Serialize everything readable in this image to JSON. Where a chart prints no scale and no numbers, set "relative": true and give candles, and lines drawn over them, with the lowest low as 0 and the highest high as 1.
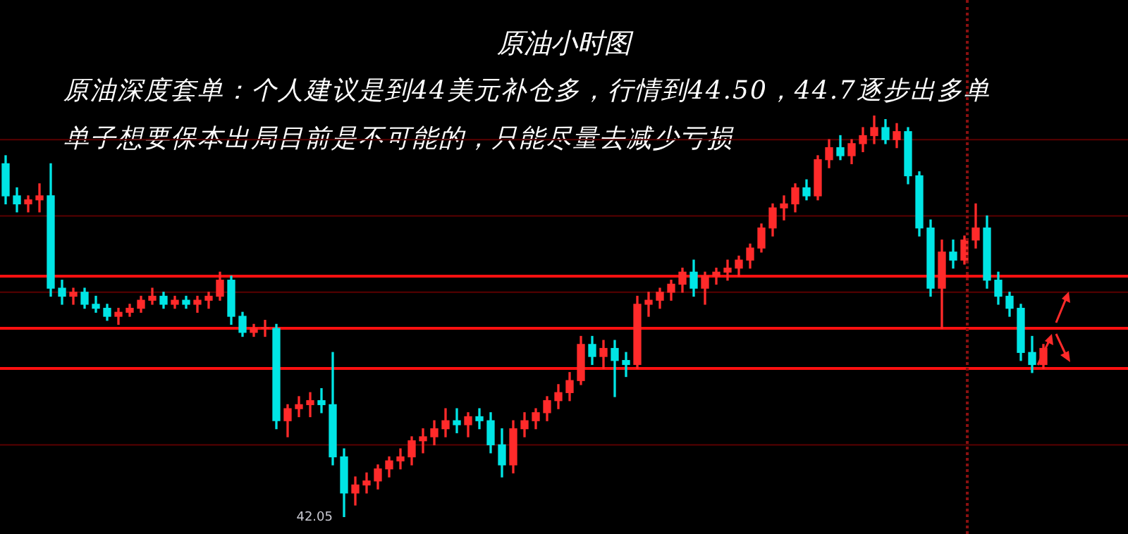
{
  "chart_data": {
    "type": "candlestick",
    "title": "原油小时图",
    "relative": true,
    "categories": [
      null,
      null,
      null,
      null,
      null,
      null,
      null,
      null,
      null,
      null,
      null,
      null,
      null,
      null,
      null,
      null,
      null,
      null,
      null,
      null,
      null,
      null,
      null,
      null,
      null,
      null,
      null,
      null,
      null,
      null,
      null,
      null,
      null,
      null,
      null,
      null,
      null,
      null,
      null,
      null,
      null,
      null,
      null,
      null,
      null,
      null,
      null,
      null,
      null,
      null,
      null,
      null,
      null,
      null,
      null,
      null,
      null,
      null,
      null,
      null,
      null,
      null,
      null,
      null,
      null,
      null,
      null,
      null,
      null,
      null,
      null,
      null,
      null,
      null,
      null,
      null,
      null,
      null,
      null,
      null,
      null,
      null,
      null,
      null,
      null,
      null,
      null,
      null,
      null,
      null,
      null,
      null,
      null
    ],
    "ohlc": [
      [
        0.88,
        0.9,
        0.78,
        0.8
      ],
      [
        0.8,
        0.82,
        0.76,
        0.78
      ],
      [
        0.78,
        0.8,
        0.76,
        0.79
      ],
      [
        0.79,
        0.83,
        0.76,
        0.8
      ],
      [
        0.8,
        0.88,
        0.55,
        0.57
      ],
      [
        0.57,
        0.59,
        0.53,
        0.55
      ],
      [
        0.55,
        0.57,
        0.53,
        0.56
      ],
      [
        0.56,
        0.57,
        0.52,
        0.53
      ],
      [
        0.53,
        0.55,
        0.51,
        0.52
      ],
      [
        0.52,
        0.53,
        0.49,
        0.5
      ],
      [
        0.5,
        0.52,
        0.48,
        0.51
      ],
      [
        0.51,
        0.53,
        0.5,
        0.52
      ],
      [
        0.52,
        0.55,
        0.51,
        0.54
      ],
      [
        0.54,
        0.57,
        0.53,
        0.55
      ],
      [
        0.55,
        0.56,
        0.52,
        0.53
      ],
      [
        0.53,
        0.55,
        0.52,
        0.54
      ],
      [
        0.54,
        0.55,
        0.52,
        0.53
      ],
      [
        0.53,
        0.55,
        0.51,
        0.54
      ],
      [
        0.54,
        0.56,
        0.52,
        0.55
      ],
      [
        0.55,
        0.61,
        0.54,
        0.59
      ],
      [
        0.59,
        0.6,
        0.48,
        0.5
      ],
      [
        0.5,
        0.51,
        0.45,
        0.46
      ],
      [
        0.46,
        0.48,
        0.45,
        0.47
      ],
      [
        0.47,
        0.49,
        0.45,
        0.47
      ],
      [
        0.47,
        0.48,
        0.22,
        0.24
      ],
      [
        0.24,
        0.28,
        0.2,
        0.27
      ],
      [
        0.27,
        0.3,
        0.25,
        0.28
      ],
      [
        0.28,
        0.31,
        0.25,
        0.29
      ],
      [
        0.29,
        0.32,
        0.26,
        0.28
      ],
      [
        0.28,
        0.41,
        0.13,
        0.15
      ],
      [
        0.15,
        0.17,
        0.0,
        0.06
      ],
      [
        0.06,
        0.1,
        0.03,
        0.08
      ],
      [
        0.08,
        0.11,
        0.06,
        0.09
      ],
      [
        0.09,
        0.13,
        0.07,
        0.12
      ],
      [
        0.12,
        0.15,
        0.1,
        0.14
      ],
      [
        0.14,
        0.17,
        0.12,
        0.15
      ],
      [
        0.15,
        0.2,
        0.13,
        0.19
      ],
      [
        0.19,
        0.22,
        0.16,
        0.2
      ],
      [
        0.2,
        0.24,
        0.18,
        0.22
      ],
      [
        0.22,
        0.27,
        0.2,
        0.24
      ],
      [
        0.24,
        0.27,
        0.21,
        0.23
      ],
      [
        0.23,
        0.26,
        0.2,
        0.25
      ],
      [
        0.25,
        0.27,
        0.22,
        0.24
      ],
      [
        0.24,
        0.26,
        0.16,
        0.18
      ],
      [
        0.18,
        0.22,
        0.1,
        0.13
      ],
      [
        0.13,
        0.24,
        0.11,
        0.22
      ],
      [
        0.22,
        0.26,
        0.2,
        0.24
      ],
      [
        0.24,
        0.27,
        0.22,
        0.26
      ],
      [
        0.26,
        0.3,
        0.24,
        0.29
      ],
      [
        0.29,
        0.33,
        0.27,
        0.31
      ],
      [
        0.31,
        0.36,
        0.29,
        0.34
      ],
      [
        0.34,
        0.45,
        0.33,
        0.43
      ],
      [
        0.43,
        0.45,
        0.38,
        0.4
      ],
      [
        0.4,
        0.44,
        0.37,
        0.42
      ],
      [
        0.42,
        0.44,
        0.3,
        0.39
      ],
      [
        0.39,
        0.41,
        0.35,
        0.38
      ],
      [
        0.38,
        0.55,
        0.37,
        0.53
      ],
      [
        0.53,
        0.56,
        0.5,
        0.54
      ],
      [
        0.54,
        0.57,
        0.52,
        0.56
      ],
      [
        0.56,
        0.59,
        0.54,
        0.58
      ],
      [
        0.58,
        0.62,
        0.56,
        0.61
      ],
      [
        0.61,
        0.64,
        0.55,
        0.57
      ],
      [
        0.57,
        0.61,
        0.53,
        0.6
      ],
      [
        0.6,
        0.62,
        0.58,
        0.61
      ],
      [
        0.61,
        0.64,
        0.59,
        0.62
      ],
      [
        0.62,
        0.65,
        0.6,
        0.64
      ],
      [
        0.64,
        0.68,
        0.62,
        0.67
      ],
      [
        0.67,
        0.73,
        0.66,
        0.72
      ],
      [
        0.72,
        0.78,
        0.7,
        0.77
      ],
      [
        0.77,
        0.8,
        0.74,
        0.78
      ],
      [
        0.78,
        0.83,
        0.76,
        0.82
      ],
      [
        0.82,
        0.84,
        0.79,
        0.8
      ],
      [
        0.8,
        0.9,
        0.79,
        0.89
      ],
      [
        0.89,
        0.94,
        0.87,
        0.92
      ],
      [
        0.92,
        0.95,
        0.89,
        0.9
      ],
      [
        0.9,
        0.94,
        0.88,
        0.93
      ],
      [
        0.93,
        0.97,
        0.91,
        0.95
      ],
      [
        0.95,
        1.0,
        0.93,
        0.97
      ],
      [
        0.97,
        0.99,
        0.93,
        0.94
      ],
      [
        0.94,
        0.98,
        0.92,
        0.96
      ],
      [
        0.96,
        0.97,
        0.83,
        0.85
      ],
      [
        0.85,
        0.86,
        0.7,
        0.72
      ],
      [
        0.72,
        0.74,
        0.55,
        0.57
      ],
      [
        0.57,
        0.69,
        0.47,
        0.66
      ],
      [
        0.66,
        0.69,
        0.62,
        0.64
      ],
      [
        0.64,
        0.7,
        0.63,
        0.69
      ],
      [
        0.69,
        0.78,
        0.67,
        0.72
      ],
      [
        0.72,
        0.75,
        0.57,
        0.59
      ],
      [
        0.59,
        0.61,
        0.53,
        0.55
      ],
      [
        0.55,
        0.56,
        0.5,
        0.52
      ],
      [
        0.52,
        0.53,
        0.39,
        0.41
      ],
      [
        0.41,
        0.45,
        0.36,
        0.38
      ],
      [
        0.38,
        0.43,
        0.37,
        0.42
      ]
    ],
    "colors": [
      "#00e5e5",
      "#00e5e5",
      "#ff2a2a",
      "#ff2a2a",
      "#00e5e5",
      "#00e5e5",
      "#ff2a2a",
      "#00e5e5",
      "#00e5e5",
      "#00e5e5",
      "#ff2a2a",
      "#ff2a2a",
      "#ff2a2a",
      "#ff2a2a",
      "#00e5e5",
      "#ff2a2a",
      "#00e5e5",
      "#ff2a2a",
      "#ff2a2a",
      "#ff2a2a",
      "#00e5e5",
      "#00e5e5",
      "#ff2a2a",
      "#ff2a2a",
      "#00e5e5",
      "#ff2a2a",
      "#ff2a2a",
      "#ff2a2a",
      "#00e5e5",
      "#00e5e5",
      "#00e5e5",
      "#ff2a2a",
      "#ff2a2a",
      "#ff2a2a",
      "#ff2a2a",
      "#ff2a2a",
      "#ff2a2a",
      "#ff2a2a",
      "#ff2a2a",
      "#ff2a2a",
      "#00e5e5",
      "#ff2a2a",
      "#00e5e5",
      "#00e5e5",
      "#00e5e5",
      "#ff2a2a",
      "#ff2a2a",
      "#ff2a2a",
      "#ff2a2a",
      "#ff2a2a",
      "#ff2a2a",
      "#ff2a2a",
      "#00e5e5",
      "#ff2a2a",
      "#00e5e5",
      "#00e5e5",
      "#ff2a2a",
      "#ff2a2a",
      "#ff2a2a",
      "#ff2a2a",
      "#ff2a2a",
      "#00e5e5",
      "#ff2a2a",
      "#ff2a2a",
      "#ff2a2a",
      "#ff2a2a",
      "#ff2a2a",
      "#ff2a2a",
      "#ff2a2a",
      "#ff2a2a",
      "#ff2a2a",
      "#00e5e5",
      "#ff2a2a",
      "#ff2a2a",
      "#00e5e5",
      "#ff2a2a",
      "#ff2a2a",
      "#ff2a2a",
      "#00e5e5",
      "#ff2a2a",
      "#00e5e5",
      "#00e5e5",
      "#00e5e5",
      "#ff2a2a",
      "#00e5e5",
      "#ff2a2a",
      "#ff2a2a",
      "#00e5e5",
      "#00e5e5",
      "#00e5e5",
      "#00e5e5",
      "#00e5e5",
      "#ff2a2a"
    ],
    "ref_lines": [
      {
        "axis": "y",
        "value": 0.6,
        "color": "#ff1010"
      },
      {
        "axis": "y",
        "value": 0.47,
        "color": "#ff1010"
      },
      {
        "axis": "y",
        "value": 0.37,
        "color": "#ff1010"
      },
      {
        "axis": "y",
        "value": 0.94,
        "color": "#5a0000"
      },
      {
        "axis": "y",
        "value": 0.75,
        "color": "#5a0000"
      },
      {
        "axis": "y",
        "value": 0.56,
        "color": "#5a0000"
      },
      {
        "axis": "y",
        "value": 0.18,
        "color": "#5a0000"
      }
    ],
    "annotations": [
      "原油深度套单：个人建议是到44美元补仓多，行情到44.50，44.7逐步出多单",
      "单子想要保本出局目前是不可能的，只能尽量去减少亏损",
      "42.05"
    ],
    "legend": false,
    "tick_labels": false
  }
}
